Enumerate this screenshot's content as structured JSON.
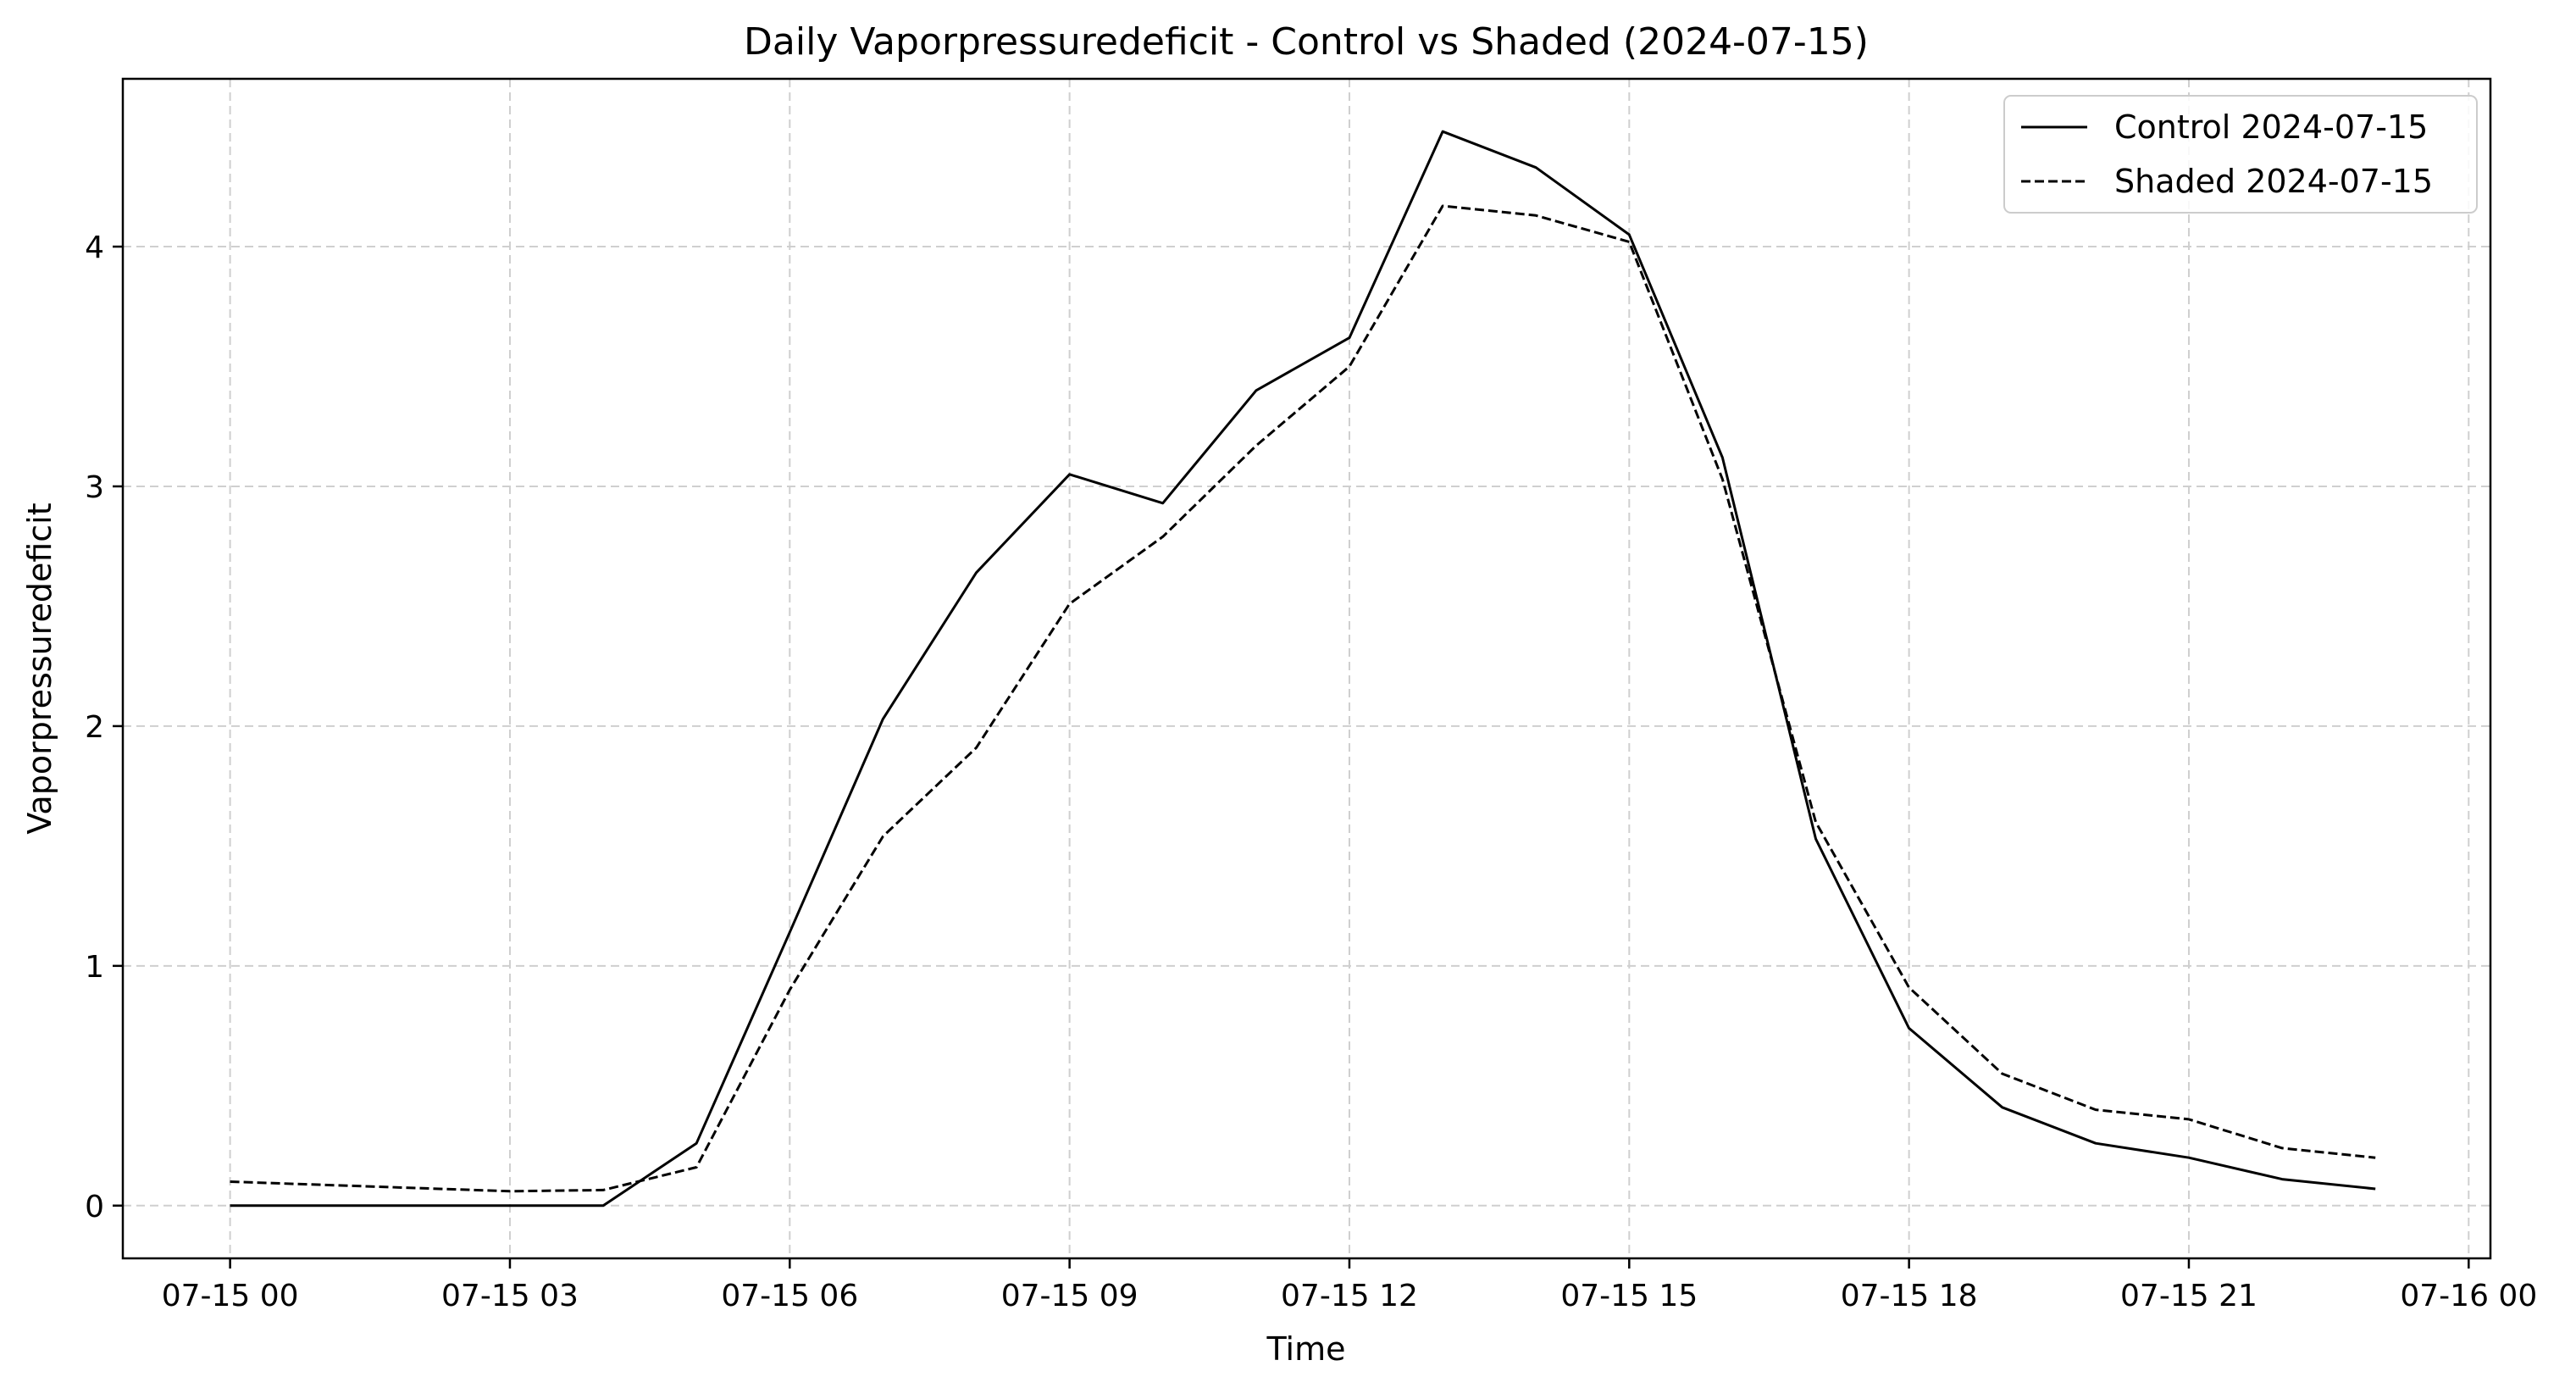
{
  "chart_data": {
    "type": "line",
    "title": "Daily Vaporpressuredeficit - Control vs Shaded (2024-07-15)",
    "xlabel": "Time",
    "ylabel": "Vaporpressuredeficit",
    "xlim": [
      "2024-07-14T22:51",
      "2024-07-16T00:14"
    ],
    "ylim": [
      -0.22,
      4.7
    ],
    "grid": true,
    "legend_position": "top-right",
    "x_ticks": [
      {
        "t": "2024-07-15T00:00",
        "label": "07-15 00"
      },
      {
        "t": "2024-07-15T03:00",
        "label": "07-15 03"
      },
      {
        "t": "2024-07-15T06:00",
        "label": "07-15 06"
      },
      {
        "t": "2024-07-15T09:00",
        "label": "07-15 09"
      },
      {
        "t": "2024-07-15T12:00",
        "label": "07-15 12"
      },
      {
        "t": "2024-07-15T15:00",
        "label": "07-15 15"
      },
      {
        "t": "2024-07-15T18:00",
        "label": "07-15 18"
      },
      {
        "t": "2024-07-15T21:00",
        "label": "07-15 21"
      },
      {
        "t": "2024-07-16T00:00",
        "label": "07-16 00"
      }
    ],
    "y_ticks": [
      0,
      1,
      2,
      3,
      4
    ],
    "series": [
      {
        "name": "Control 2024-07-15",
        "line_style": "solid",
        "color": "#000000",
        "points": [
          {
            "t": "2024-07-15T00:00",
            "y": 0.0
          },
          {
            "t": "2024-07-15T03:00",
            "y": 0.0
          },
          {
            "t": "2024-07-15T04:00",
            "y": 0.0
          },
          {
            "t": "2024-07-15T05:00",
            "y": 0.26
          },
          {
            "t": "2024-07-15T06:00",
            "y": 1.14
          },
          {
            "t": "2024-07-15T07:00",
            "y": 2.03
          },
          {
            "t": "2024-07-15T08:00",
            "y": 2.64
          },
          {
            "t": "2024-07-15T09:00",
            "y": 3.05
          },
          {
            "t": "2024-07-15T10:00",
            "y": 2.93
          },
          {
            "t": "2024-07-15T11:00",
            "y": 3.4
          },
          {
            "t": "2024-07-15T12:00",
            "y": 3.62
          },
          {
            "t": "2024-07-15T13:00",
            "y": 4.48
          },
          {
            "t": "2024-07-15T14:00",
            "y": 4.33
          },
          {
            "t": "2024-07-15T15:00",
            "y": 4.05
          },
          {
            "t": "2024-07-15T16:00",
            "y": 3.12
          },
          {
            "t": "2024-07-15T17:00",
            "y": 1.53
          },
          {
            "t": "2024-07-15T18:00",
            "y": 0.74
          },
          {
            "t": "2024-07-15T19:00",
            "y": 0.41
          },
          {
            "t": "2024-07-15T20:00",
            "y": 0.26
          },
          {
            "t": "2024-07-15T21:00",
            "y": 0.2
          },
          {
            "t": "2024-07-15T22:00",
            "y": 0.11
          },
          {
            "t": "2024-07-15T23:00",
            "y": 0.07
          }
        ]
      },
      {
        "name": "Shaded 2024-07-15",
        "line_style": "dashed",
        "color": "#000000",
        "points": [
          {
            "t": "2024-07-15T00:00",
            "y": 0.1
          },
          {
            "t": "2024-07-15T03:00",
            "y": 0.06
          },
          {
            "t": "2024-07-15T04:00",
            "y": 0.065
          },
          {
            "t": "2024-07-15T05:00",
            "y": 0.16
          },
          {
            "t": "2024-07-15T06:00",
            "y": 0.9
          },
          {
            "t": "2024-07-15T07:00",
            "y": 1.54
          },
          {
            "t": "2024-07-15T08:00",
            "y": 1.91
          },
          {
            "t": "2024-07-15T09:00",
            "y": 2.51
          },
          {
            "t": "2024-07-15T10:00",
            "y": 2.79
          },
          {
            "t": "2024-07-15T11:00",
            "y": 3.17
          },
          {
            "t": "2024-07-15T12:00",
            "y": 3.5
          },
          {
            "t": "2024-07-15T13:00",
            "y": 4.17
          },
          {
            "t": "2024-07-15T14:00",
            "y": 4.13
          },
          {
            "t": "2024-07-15T15:00",
            "y": 4.02
          },
          {
            "t": "2024-07-15T16:00",
            "y": 3.03
          },
          {
            "t": "2024-07-15T17:00",
            "y": 1.6
          },
          {
            "t": "2024-07-15T18:00",
            "y": 0.91
          },
          {
            "t": "2024-07-15T19:00",
            "y": 0.55
          },
          {
            "t": "2024-07-15T20:00",
            "y": 0.4
          },
          {
            "t": "2024-07-15T21:00",
            "y": 0.36
          },
          {
            "t": "2024-07-15T22:00",
            "y": 0.24
          },
          {
            "t": "2024-07-15T23:00",
            "y": 0.2
          }
        ]
      }
    ]
  }
}
